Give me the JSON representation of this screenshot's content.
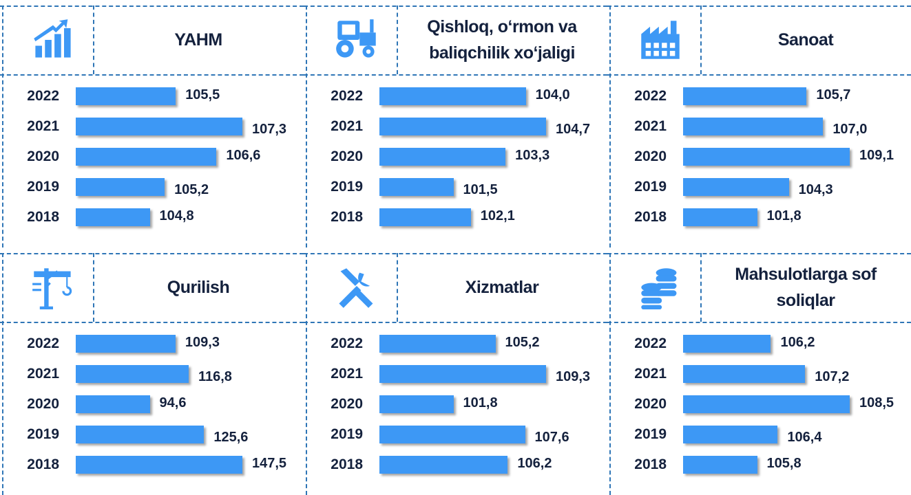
{
  "chart_data": [
    {
      "type": "bar",
      "title": "YAHM",
      "icon": "growth",
      "color": "#3d98f5",
      "categories": [
        "2022",
        "2021",
        "2020",
        "2019",
        "2018"
      ],
      "values": [
        105.5,
        107.3,
        106.6,
        105.2,
        104.8
      ],
      "value_labels": [
        "105,5",
        "107,3",
        "106,6",
        "105,2",
        "104,8"
      ]
    },
    {
      "type": "bar",
      "title": "Qishloq, o‘rmon va baliqchilik xo‘jaligi",
      "icon": "tractor",
      "color": "#3d98f5",
      "categories": [
        "2022",
        "2021",
        "2020",
        "2019",
        "2018"
      ],
      "values": [
        104.0,
        104.7,
        103.3,
        101.5,
        102.1
      ],
      "value_labels": [
        "104,0",
        "104,7",
        "103,3",
        "101,5",
        "102,1"
      ]
    },
    {
      "type": "bar",
      "title": "Sanoat",
      "icon": "factory",
      "color": "#3d98f5",
      "categories": [
        "2022",
        "2021",
        "2020",
        "2019",
        "2018"
      ],
      "values": [
        105.7,
        107.0,
        109.1,
        104.3,
        101.8
      ],
      "value_labels": [
        "105,7",
        "107,0",
        "109,1",
        "104,3",
        "101,8"
      ]
    },
    {
      "type": "bar",
      "title": "Qurilish",
      "icon": "crane",
      "color": "#3d98f5",
      "categories": [
        "2022",
        "2021",
        "2020",
        "2019",
        "2018"
      ],
      "values": [
        109.3,
        116.8,
        94.6,
        125.6,
        147.5
      ],
      "value_labels": [
        "109,3",
        "116,8",
        "94,6",
        "125,6",
        "147,5"
      ]
    },
    {
      "type": "bar",
      "title": "Xizmatlar",
      "icon": "tools",
      "color": "#3d98f5",
      "categories": [
        "2022",
        "2021",
        "2020",
        "2019",
        "2018"
      ],
      "values": [
        105.2,
        109.3,
        101.8,
        107.6,
        106.2
      ],
      "value_labels": [
        "105,2",
        "109,3",
        "101,8",
        "107,6",
        "106,2"
      ]
    },
    {
      "type": "bar",
      "title": "Mahsulotlarga sof soliqlar",
      "icon": "coins",
      "color": "#3d98f5",
      "categories": [
        "2022",
        "2021",
        "2020",
        "2019",
        "2018"
      ],
      "values": [
        106.2,
        107.2,
        108.5,
        106.4,
        105.8
      ],
      "value_labels": [
        "106,2",
        "107,2",
        "108,5",
        "106,4",
        "105,8"
      ]
    }
  ]
}
